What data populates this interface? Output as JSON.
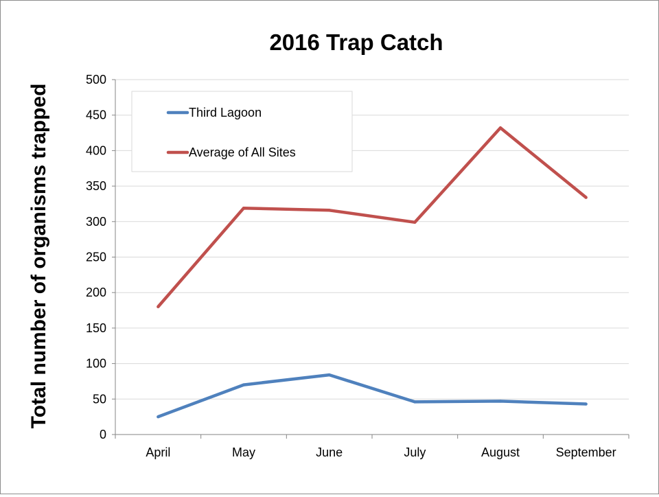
{
  "chart_data": {
    "type": "line",
    "title": "2016 Trap Catch",
    "xlabel": "",
    "ylabel": "Total number of organisms trapped",
    "categories": [
      "April",
      "May",
      "June",
      "July",
      "August",
      "September"
    ],
    "ylim": [
      0,
      500
    ],
    "yticks": [
      0,
      50,
      100,
      150,
      200,
      250,
      300,
      350,
      400,
      450,
      500
    ],
    "grid": true,
    "legend_position": "top-left",
    "series": [
      {
        "name": "Third Lagoon",
        "color": "#4f81bd",
        "values": [
          25,
          70,
          84,
          46,
          47,
          43
        ]
      },
      {
        "name": "Average of All Sites",
        "color": "#c0504d",
        "values": [
          180,
          319,
          316,
          299,
          432,
          334
        ]
      }
    ]
  }
}
